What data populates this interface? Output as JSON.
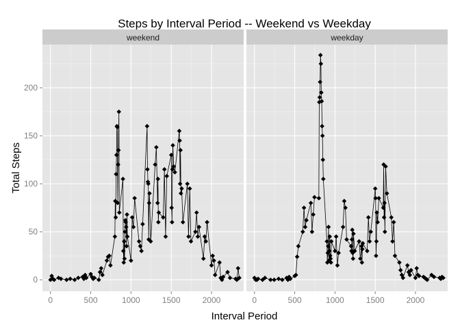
{
  "chart_data": {
    "type": "line",
    "title": "Steps by Interval Period -- Weekend vs Weekday",
    "xlabel": "Interval Period",
    "ylabel": "Total Steps",
    "xlim": [
      -100,
      2400
    ],
    "ylim": [
      -12,
      245
    ],
    "xticks": [
      0,
      500,
      1000,
      1500,
      2000
    ],
    "yticks": [
      0,
      50,
      100,
      150,
      200
    ],
    "grid": true,
    "markers": true,
    "colors": {
      "panel_background": "#e5e5e5",
      "strip_background": "#cccccc",
      "grid": "#ffffff",
      "series": "#000000"
    },
    "panels": [
      {
        "name": "weekend",
        "x": [
          0,
          15,
          30,
          45,
          100,
          130,
          200,
          245,
          300,
          345,
          400,
          415,
          430,
          445,
          500,
          515,
          530,
          545,
          600,
          615,
          630,
          645,
          700,
          715,
          730,
          745,
          800,
          805,
          810,
          815,
          820,
          825,
          830,
          835,
          840,
          845,
          850,
          855,
          900,
          905,
          910,
          915,
          920,
          925,
          930,
          935,
          940,
          945,
          950,
          955,
          1000,
          1015,
          1030,
          1045,
          1100,
          1115,
          1130,
          1145,
          1200,
          1205,
          1210,
          1215,
          1220,
          1225,
          1230,
          1245,
          1300,
          1315,
          1330,
          1335,
          1340,
          1345,
          1400,
          1415,
          1430,
          1445,
          1500,
          1505,
          1510,
          1515,
          1520,
          1530,
          1545,
          1600,
          1605,
          1610,
          1615,
          1620,
          1630,
          1645,
          1700,
          1715,
          1730,
          1745,
          1800,
          1815,
          1830,
          1845,
          1900,
          1915,
          1930,
          1945,
          2000,
          2015,
          2030,
          2045,
          2100,
          2115,
          2130,
          2145,
          2200,
          2230,
          2300,
          2315,
          2330,
          2345
        ],
        "values": [
          0,
          4,
          1,
          0,
          2,
          1,
          0,
          1,
          0,
          2,
          3,
          1,
          5,
          2,
          6,
          3,
          1,
          2,
          0,
          8,
          12,
          5,
          20,
          24,
          25,
          15,
          45,
          82,
          65,
          110,
          130,
          160,
          159,
          80,
          120,
          135,
          175,
          70,
          105,
          30,
          18,
          40,
          22,
          50,
          62,
          60,
          55,
          35,
          68,
          45,
          20,
          65,
          55,
          85,
          40,
          35,
          30,
          58,
          160,
          115,
          102,
          100,
          42,
          80,
          90,
          40,
          120,
          138,
          80,
          105,
          60,
          70,
          65,
          115,
          45,
          108,
          130,
          75,
          60,
          115,
          140,
          118,
          112,
          155,
          145,
          100,
          135,
          90,
          95,
          60,
          100,
          45,
          95,
          40,
          50,
          70,
          45,
          55,
          22,
          45,
          40,
          60,
          15,
          25,
          20,
          5,
          18,
          2,
          0,
          3,
          8,
          2,
          1,
          0,
          12,
          2
        ]
      },
      {
        "name": "weekday",
        "x": [
          0,
          15,
          30,
          45,
          100,
          130,
          200,
          245,
          300,
          345,
          400,
          415,
          430,
          445,
          500,
          515,
          530,
          545,
          600,
          615,
          630,
          645,
          700,
          715,
          730,
          745,
          800,
          805,
          810,
          815,
          820,
          825,
          830,
          835,
          840,
          845,
          850,
          855,
          900,
          905,
          910,
          915,
          920,
          925,
          930,
          935,
          940,
          945,
          950,
          955,
          1000,
          1015,
          1030,
          1045,
          1100,
          1115,
          1130,
          1145,
          1200,
          1205,
          1210,
          1215,
          1220,
          1225,
          1230,
          1245,
          1300,
          1315,
          1330,
          1335,
          1340,
          1345,
          1400,
          1415,
          1430,
          1445,
          1500,
          1505,
          1510,
          1515,
          1520,
          1530,
          1545,
          1600,
          1605,
          1610,
          1615,
          1620,
          1630,
          1645,
          1700,
          1715,
          1730,
          1745,
          1800,
          1815,
          1830,
          1845,
          1900,
          1915,
          1930,
          1945,
          2000,
          2015,
          2030,
          2045,
          2100,
          2115,
          2130,
          2145,
          2200,
          2230,
          2300,
          2315,
          2330,
          2345
        ],
        "values": [
          2,
          0,
          0,
          1,
          0,
          2,
          0,
          0,
          1,
          0,
          2,
          0,
          3,
          1,
          4,
          5,
          24,
          35,
          50,
          75,
          55,
          62,
          80,
          50,
          68,
          86,
          85,
          185,
          190,
          206,
          234,
          225,
          195,
          186,
          160,
          150,
          125,
          105,
          40,
          18,
          28,
          35,
          55,
          20,
          30,
          45,
          25,
          22,
          18,
          40,
          30,
          45,
          15,
          28,
          55,
          82,
          75,
          42,
          35,
          30,
          42,
          52,
          28,
          22,
          48,
          30,
          40,
          22,
          35,
          18,
          32,
          38,
          30,
          65,
          40,
          50,
          95,
          85,
          25,
          40,
          70,
          60,
          85,
          75,
          120,
          65,
          80,
          50,
          118,
          90,
          65,
          40,
          60,
          25,
          18,
          10,
          5,
          2,
          15,
          8,
          5,
          10,
          2,
          12,
          5,
          4,
          3,
          2,
          1,
          0,
          5,
          3,
          2,
          1,
          3,
          2
        ]
      }
    ]
  }
}
